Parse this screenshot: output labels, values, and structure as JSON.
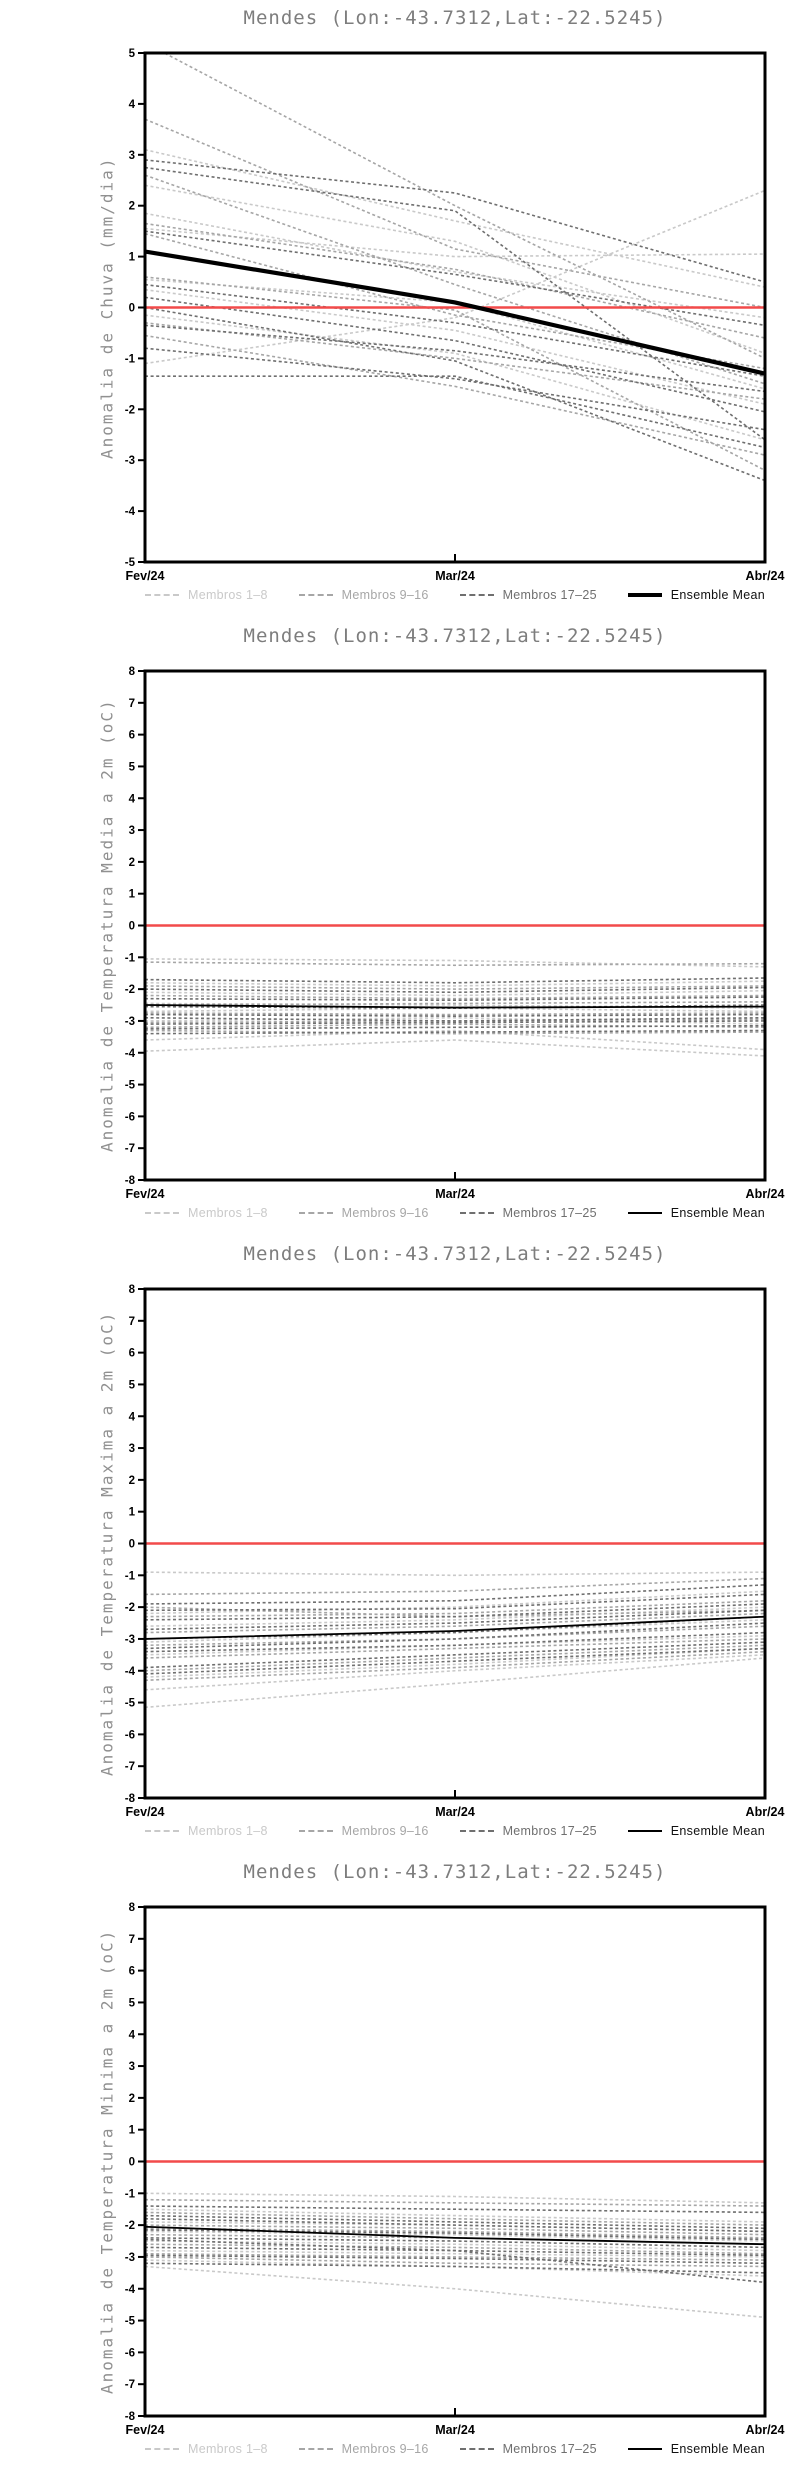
{
  "page": {
    "background": "#ffffff"
  },
  "colors": {
    "zero_line": "#f24a4a",
    "frame": "#000000",
    "title_text": "#7d7d7d",
    "axis_label_text": "#909090",
    "tick_text": "#000000",
    "members_1_8": "#c9c9c9",
    "members_9_16": "#a6a6a6",
    "members_17_25": "#6f6f6f",
    "ensemble_mean": "#000000"
  },
  "chart_data": [
    {
      "type": "line",
      "title": "Mendes (Lon:-43.7312,Lat:-22.5245)",
      "ylabel": "Anomalia de Chuva (mm/dia)",
      "x": [
        "Fev/24",
        "Mar/24",
        "Abr/24"
      ],
      "ylim": [
        -5,
        5
      ],
      "ytick_step": 1,
      "grid": false,
      "zero_line": 0,
      "legend_position": "bottom",
      "series": [
        {
          "name": "Membros 1–8",
          "role": "members",
          "style": "dashed",
          "color": "#c9c9c9",
          "width": 1.6,
          "lines": [
            [
              3.1,
              1.7,
              0.4
            ],
            [
              2.4,
              1.3,
              -0.9
            ],
            [
              1.85,
              0.7,
              -0.2
            ],
            [
              1.55,
              1.0,
              1.05
            ],
            [
              0.55,
              0.1,
              -1.6
            ],
            [
              0.35,
              -0.45,
              -1.9
            ],
            [
              -0.15,
              -0.9,
              -2.6
            ],
            [
              -1.1,
              -0.2,
              2.3
            ]
          ]
        },
        {
          "name": "Membros 9–16",
          "role": "members",
          "style": "dashed",
          "color": "#a6a6a6",
          "width": 1.6,
          "lines": [
            [
              5.2,
              2.0,
              -1.0
            ],
            [
              3.7,
              1.15,
              0.0
            ],
            [
              2.6,
              0.45,
              -1.5
            ],
            [
              1.65,
              0.75,
              -0.6
            ],
            [
              1.45,
              -0.15,
              -1.2
            ],
            [
              0.6,
              -0.05,
              -3.2
            ],
            [
              -0.3,
              -1.0,
              -1.8
            ],
            [
              -0.55,
              -1.55,
              -2.9
            ]
          ]
        },
        {
          "name": "Membros 17–25",
          "role": "members",
          "style": "dashed",
          "color": "#6f6f6f",
          "width": 1.6,
          "lines": [
            [
              2.9,
              2.25,
              0.5
            ],
            [
              2.75,
              1.9,
              -2.6
            ],
            [
              1.5,
              0.65,
              -0.35
            ],
            [
              0.45,
              -0.3,
              -1.35
            ],
            [
              0.2,
              -0.65,
              -2.05
            ],
            [
              0.0,
              -1.05,
              -3.4
            ],
            [
              -0.35,
              -0.85,
              -1.65
            ],
            [
              -0.8,
              -1.4,
              -2.4
            ],
            [
              -1.35,
              -1.35,
              -2.75
            ]
          ]
        },
        {
          "name": "Ensemble Mean",
          "role": "mean",
          "style": "solid",
          "color": "#000000",
          "width": 4.2,
          "lines": [
            [
              1.1,
              0.1,
              -1.3
            ]
          ]
        }
      ]
    },
    {
      "type": "line",
      "title": "Mendes (Lon:-43.7312,Lat:-22.5245)",
      "ylabel": "Anomalia de Temperatura Media a 2m (oC)",
      "x": [
        "Fev/24",
        "Mar/24",
        "Abr/24"
      ],
      "ylim": [
        -8,
        8
      ],
      "ytick_step": 1,
      "grid": false,
      "zero_line": 0,
      "legend_position": "bottom",
      "series": [
        {
          "name": "Membros 1–8",
          "role": "members",
          "style": "dashed",
          "color": "#c9c9c9",
          "width": 1.6,
          "lines": [
            [
              -1.05,
              -1.1,
              -1.3
            ],
            [
              -1.8,
              -1.9,
              -1.75
            ],
            [
              -2.1,
              -2.2,
              -2.05
            ],
            [
              -2.45,
              -2.5,
              -2.6
            ],
            [
              -2.7,
              -2.6,
              -2.7
            ],
            [
              -3.0,
              -2.9,
              -3.1
            ],
            [
              -3.6,
              -3.3,
              -3.9
            ],
            [
              -3.95,
              -3.6,
              -4.1
            ]
          ]
        },
        {
          "name": "Membros 9–16",
          "role": "members",
          "style": "dashed",
          "color": "#a6a6a6",
          "width": 1.6,
          "lines": [
            [
              -1.15,
              -1.25,
              -1.2
            ],
            [
              -1.9,
              -2.0,
              -1.9
            ],
            [
              -2.2,
              -2.3,
              -2.2
            ],
            [
              -2.5,
              -2.45,
              -2.4
            ],
            [
              -2.75,
              -2.8,
              -2.75
            ],
            [
              -3.05,
              -3.0,
              -2.95
            ],
            [
              -3.2,
              -3.1,
              -3.2
            ],
            [
              -3.3,
              -3.4,
              -3.35
            ]
          ]
        },
        {
          "name": "Membros 17–25",
          "role": "members",
          "style": "dashed",
          "color": "#6f6f6f",
          "width": 1.6,
          "lines": [
            [
              -1.7,
              -1.8,
              -1.65
            ],
            [
              -2.0,
              -2.1,
              -1.95
            ],
            [
              -2.3,
              -2.35,
              -2.25
            ],
            [
              -2.55,
              -2.6,
              -2.5
            ],
            [
              -2.8,
              -2.85,
              -2.8
            ],
            [
              -2.9,
              -3.0,
              -2.9
            ],
            [
              -3.1,
              -3.05,
              -3.0
            ],
            [
              -3.25,
              -3.2,
              -3.15
            ],
            [
              -3.4,
              -3.35,
              -3.3
            ]
          ]
        },
        {
          "name": "Ensemble Mean",
          "role": "mean",
          "style": "solid",
          "color": "#000000",
          "width": 1.8,
          "lines": [
            [
              -2.5,
              -2.58,
              -2.55
            ]
          ]
        }
      ]
    },
    {
      "type": "line",
      "title": "Mendes (Lon:-43.7312,Lat:-22.5245)",
      "ylabel": "Anomalia de Temperatura Maxima a 2m (oC)",
      "x": [
        "Fev/24",
        "Mar/24",
        "Abr/24"
      ],
      "ylim": [
        -8,
        8
      ],
      "ytick_step": 1,
      "grid": false,
      "zero_line": 0,
      "legend_position": "bottom",
      "series": [
        {
          "name": "Membros 1–8",
          "role": "members",
          "style": "dashed",
          "color": "#c9c9c9",
          "width": 1.6,
          "lines": [
            [
              -0.9,
              -1.0,
              -0.9
            ],
            [
              -2.2,
              -2.0,
              -1.5
            ],
            [
              -2.6,
              -2.4,
              -2.0
            ],
            [
              -3.1,
              -2.8,
              -2.4
            ],
            [
              -3.5,
              -3.2,
              -2.9
            ],
            [
              -4.2,
              -3.8,
              -3.3
            ],
            [
              -4.6,
              -4.0,
              -3.5
            ],
            [
              -5.15,
              -4.4,
              -3.6
            ]
          ]
        },
        {
          "name": "Membros 9–16",
          "role": "members",
          "style": "dashed",
          "color": "#a6a6a6",
          "width": 1.6,
          "lines": [
            [
              -1.6,
              -1.5,
              -1.1
            ],
            [
              -2.3,
              -2.2,
              -1.8
            ],
            [
              -2.8,
              -2.6,
              -2.2
            ],
            [
              -3.2,
              -3.0,
              -2.6
            ],
            [
              -3.6,
              -3.3,
              -3.0
            ],
            [
              -4.0,
              -3.6,
              -3.2
            ],
            [
              -4.3,
              -3.9,
              -3.4
            ],
            [
              -2.0,
              -2.3,
              -2.1
            ]
          ]
        },
        {
          "name": "Membros 17–25",
          "role": "members",
          "style": "dashed",
          "color": "#6f6f6f",
          "width": 1.6,
          "lines": [
            [
              -1.9,
              -1.8,
              -1.3
            ],
            [
              -2.1,
              -2.05,
              -1.6
            ],
            [
              -2.4,
              -2.3,
              -1.9
            ],
            [
              -2.7,
              -2.5,
              -2.1
            ],
            [
              -3.0,
              -2.8,
              -2.3
            ],
            [
              -3.3,
              -3.0,
              -2.5
            ],
            [
              -3.4,
              -3.2,
              -2.8
            ],
            [
              -3.9,
              -3.5,
              -3.1
            ],
            [
              -4.1,
              -3.7,
              -3.3
            ]
          ]
        },
        {
          "name": "Ensemble Mean",
          "role": "mean",
          "style": "solid",
          "color": "#000000",
          "width": 1.8,
          "lines": [
            [
              -3.0,
              -2.75,
              -2.3
            ]
          ]
        }
      ]
    },
    {
      "type": "line",
      "title": "Mendes (Lon:-43.7312,Lat:-22.5245)",
      "ylabel": "Anomalia de Temperatura Minima a 2m (oC)",
      "x": [
        "Fev/24",
        "Mar/24",
        "Abr/24"
      ],
      "ylim": [
        -8,
        8
      ],
      "ytick_step": 1,
      "grid": false,
      "zero_line": 0,
      "legend_position": "bottom",
      "series": [
        {
          "name": "Membros 1–8",
          "role": "members",
          "style": "dashed",
          "color": "#c9c9c9",
          "width": 1.6,
          "lines": [
            [
              -1.0,
              -1.1,
              -1.3
            ],
            [
              -1.5,
              -1.7,
              -1.9
            ],
            [
              -1.9,
              -2.0,
              -2.2
            ],
            [
              -2.2,
              -2.3,
              -2.5
            ],
            [
              -2.5,
              -2.6,
              -2.8
            ],
            [
              -2.8,
              -2.9,
              -3.0
            ],
            [
              -3.1,
              -3.3,
              -3.6
            ],
            [
              -3.3,
              -4.0,
              -4.9
            ]
          ]
        },
        {
          "name": "Membros 9–16",
          "role": "members",
          "style": "dashed",
          "color": "#a6a6a6",
          "width": 1.6,
          "lines": [
            [
              -1.2,
              -1.3,
              -1.4
            ],
            [
              -1.6,
              -1.8,
              -2.0
            ],
            [
              -2.0,
              -2.1,
              -2.3
            ],
            [
              -2.3,
              -2.4,
              -2.6
            ],
            [
              -2.6,
              -2.7,
              -2.9
            ],
            [
              -2.9,
              -3.0,
              -3.1
            ],
            [
              -3.0,
              -3.2,
              -3.3
            ],
            [
              -2.1,
              -2.2,
              -2.4
            ]
          ]
        },
        {
          "name": "Membros 17–25",
          "role": "members",
          "style": "dashed",
          "color": "#6f6f6f",
          "width": 1.6,
          "lines": [
            [
              -1.4,
              -1.5,
              -1.6
            ],
            [
              -1.7,
              -1.9,
              -2.1
            ],
            [
              -1.8,
              -2.0,
              -2.2
            ],
            [
              -2.15,
              -2.25,
              -2.45
            ],
            [
              -2.4,
              -2.5,
              -2.7
            ],
            [
              -2.7,
              -2.8,
              -2.95
            ],
            [
              -2.95,
              -3.05,
              -3.2
            ],
            [
              -3.2,
              -3.3,
              -3.5
            ],
            [
              -2.45,
              -2.8,
              -3.8
            ]
          ]
        },
        {
          "name": "Ensemble Mean",
          "role": "mean",
          "style": "solid",
          "color": "#000000",
          "width": 1.8,
          "lines": [
            [
              -2.05,
              -2.4,
              -2.6
            ]
          ]
        }
      ]
    }
  ]
}
